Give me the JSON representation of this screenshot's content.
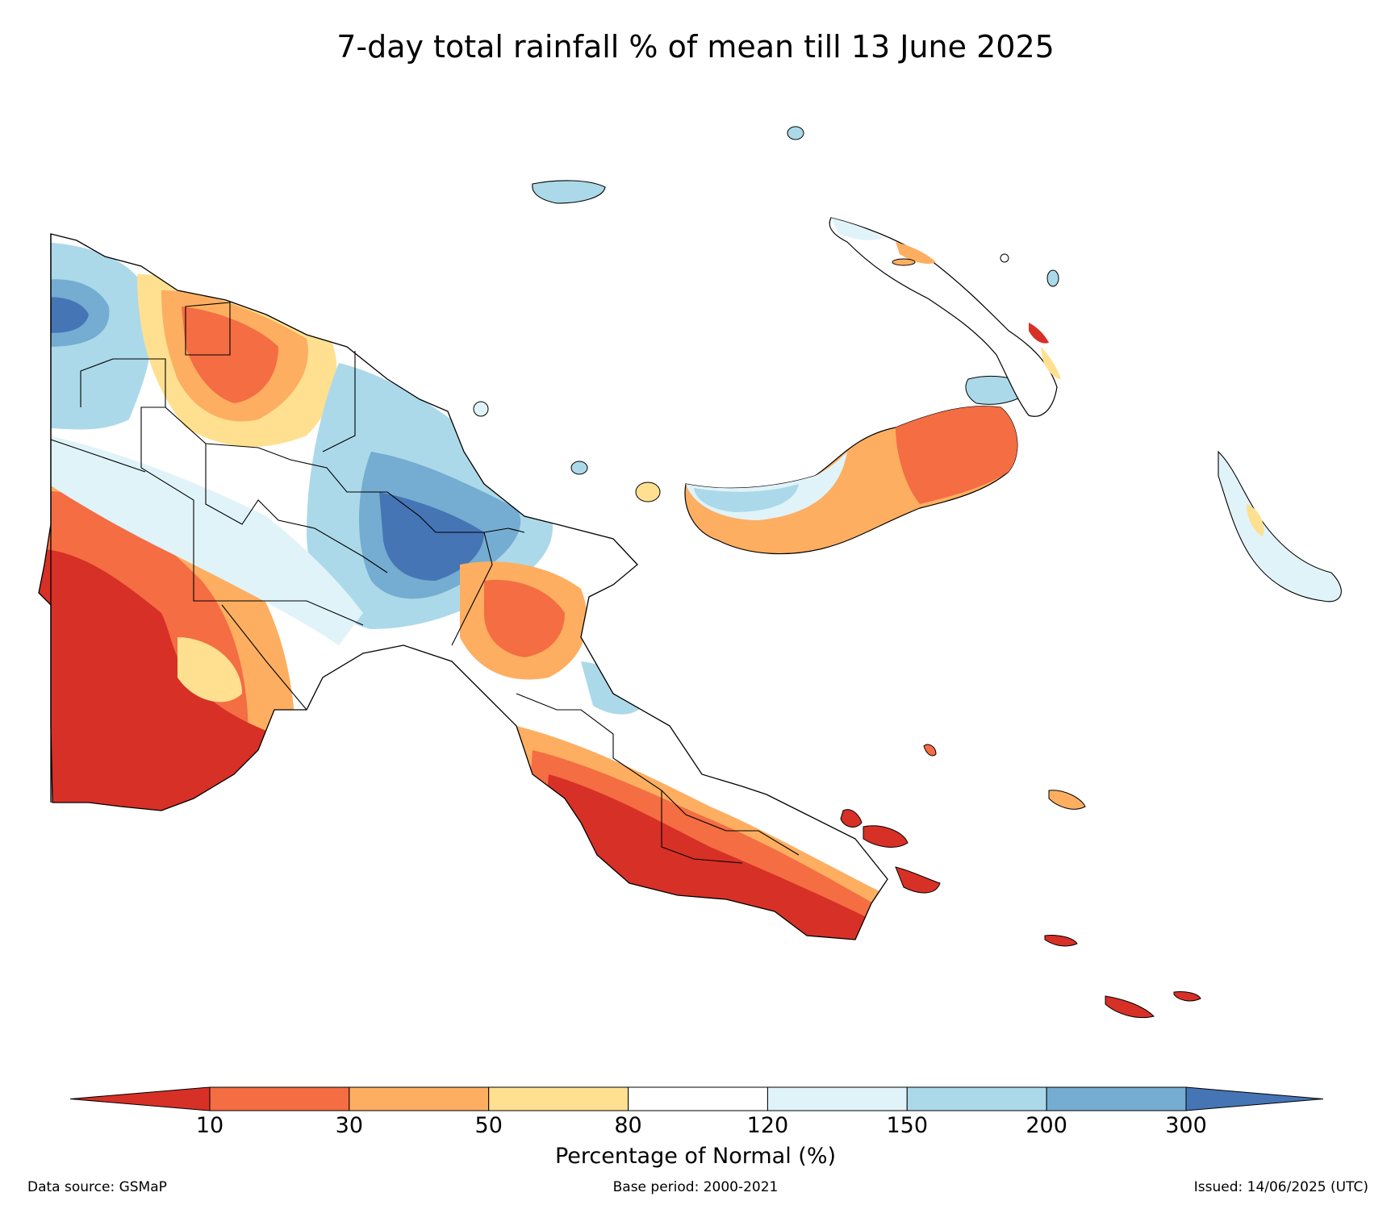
{
  "title": "7-day total rainfall % of mean till 13 June 2025",
  "legend": {
    "label": "Percentage of Normal (%)",
    "ticks": [
      "10",
      "30",
      "50",
      "80",
      "120",
      "150",
      "200",
      "300"
    ],
    "colors": [
      "#d73027",
      "#f46d43",
      "#fdae61",
      "#fee090",
      "#ffffff",
      "#e0f3f8",
      "#abd9e9",
      "#74add1",
      "#4575b4"
    ]
  },
  "footer": {
    "source": "Data source: GSMaP",
    "base": "Base period: 2000-2021",
    "issued": "Issued: 14/06/2025 (UTC)"
  }
}
